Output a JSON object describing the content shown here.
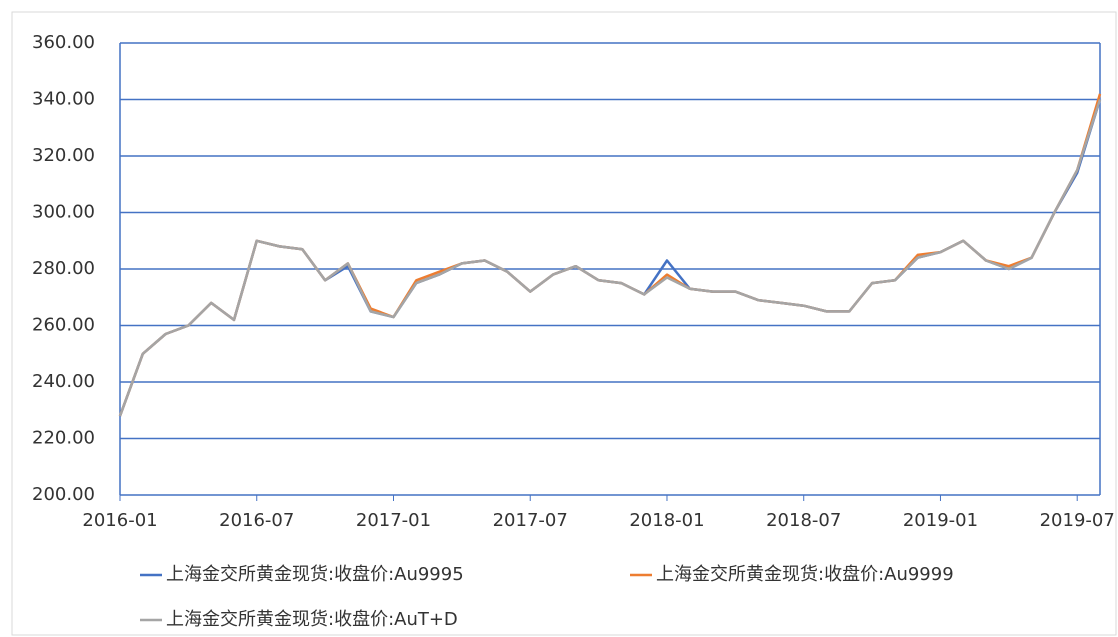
{
  "chart_data": {
    "type": "line",
    "x": [
      "2016-01",
      "2016-02",
      "2016-03",
      "2016-04",
      "2016-05",
      "2016-06",
      "2016-07",
      "2016-08",
      "2016-09",
      "2016-10",
      "2016-11",
      "2016-12",
      "2017-01",
      "2017-02",
      "2017-03",
      "2017-04",
      "2017-05",
      "2017-06",
      "2017-07",
      "2017-08",
      "2017-09",
      "2017-10",
      "2017-11",
      "2017-12",
      "2018-01",
      "2018-02",
      "2018-03",
      "2018-04",
      "2018-05",
      "2018-06",
      "2018-07",
      "2018-08",
      "2018-09",
      "2018-10",
      "2018-11",
      "2018-12",
      "2019-01",
      "2019-02",
      "2019-03",
      "2019-04",
      "2019-05",
      "2019-06",
      "2019-07",
      "2019-08"
    ],
    "series": [
      {
        "name": "上海金交所黄金现货:收盘价:Au9995",
        "color": "#4472c4",
        "values": [
          228,
          250,
          257,
          260,
          268,
          262,
          290,
          288,
          287,
          276,
          281,
          265,
          263,
          275,
          278,
          282,
          283,
          279,
          272,
          278,
          281,
          276,
          275,
          271,
          283,
          273,
          272,
          272,
          269,
          268,
          267,
          265,
          265,
          275,
          276,
          284,
          286,
          290,
          283,
          280,
          284,
          300,
          314,
          340
        ]
      },
      {
        "name": "上海金交所黄金现货:收盘价:Au9999",
        "color": "#ed7d31",
        "values": [
          228,
          250,
          257,
          260,
          268,
          262,
          290,
          288,
          287,
          276,
          282,
          266,
          263,
          276,
          279,
          282,
          283,
          279,
          272,
          278,
          281,
          276,
          275,
          271,
          278,
          273,
          272,
          272,
          269,
          268,
          267,
          265,
          265,
          275,
          276,
          285,
          286,
          290,
          283,
          281,
          284,
          300,
          315,
          342
        ]
      },
      {
        "name": "上海金交所黄金现货:收盘价:AuT+D",
        "color": "#a5a5a5",
        "values": [
          228,
          250,
          257,
          260,
          268,
          262,
          290,
          288,
          287,
          276,
          282,
          265,
          263,
          275,
          278,
          282,
          283,
          279,
          272,
          278,
          281,
          276,
          275,
          271,
          277,
          273,
          272,
          272,
          269,
          268,
          267,
          265,
          265,
          275,
          276,
          284,
          286,
          290,
          283,
          280,
          284,
          300,
          315,
          340
        ]
      }
    ],
    "xticks": [
      "2016-01",
      "2016-07",
      "2017-01",
      "2017-07",
      "2018-01",
      "2018-07",
      "2019-01",
      "2019-07"
    ],
    "ylim": [
      200,
      360
    ],
    "yticks": [
      {
        "value": 200,
        "label": "200.00"
      },
      {
        "value": 220,
        "label": "220.00"
      },
      {
        "value": 240,
        "label": "240.00"
      },
      {
        "value": 260,
        "label": "260.00"
      },
      {
        "value": 280,
        "label": "280.00"
      },
      {
        "value": 300,
        "label": "300.00"
      },
      {
        "value": 320,
        "label": "320.00"
      },
      {
        "value": 340,
        "label": "340.00"
      },
      {
        "value": 360,
        "label": "360.00"
      }
    ],
    "grid": true,
    "legend": "bottom"
  }
}
